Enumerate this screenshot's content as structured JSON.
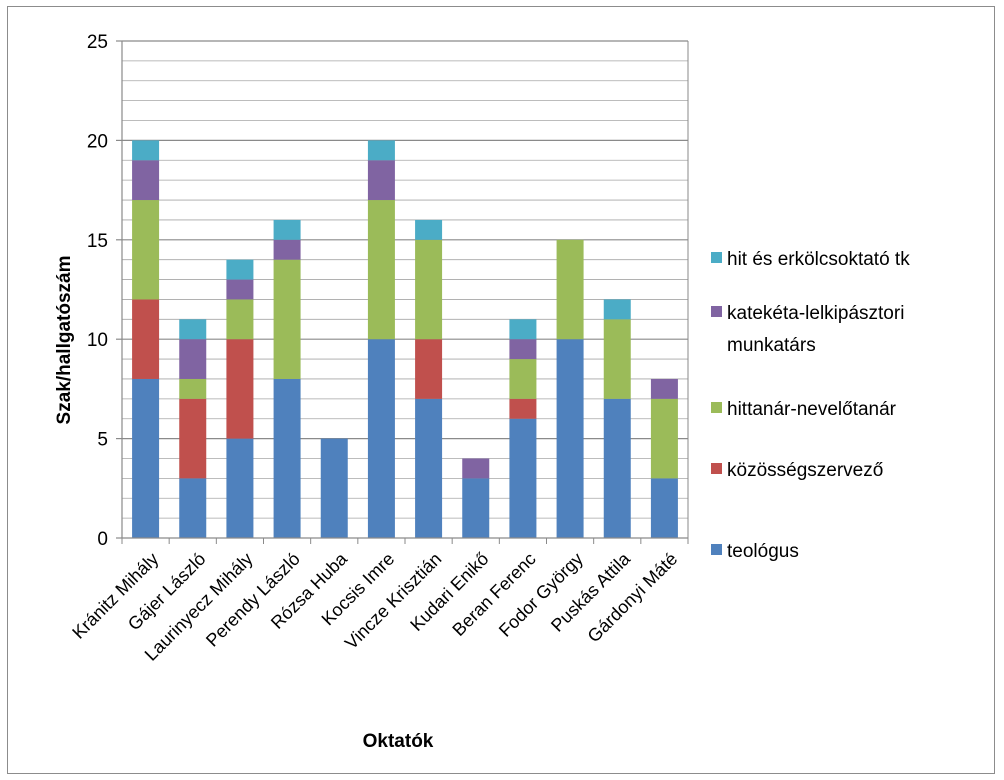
{
  "chart_data": {
    "type": "bar",
    "stacked": true,
    "categories": [
      "Kránitz Mihály",
      "Gájer László",
      "Laurinyecz Mihály",
      "Perendy László",
      "Rózsa Huba",
      "Kocsis Imre",
      "Vincze Krisztián",
      "Kudari Enikő",
      "Beran Ferenc",
      "Fodor György",
      "Puskás Attila",
      "Gárdonyi Máté"
    ],
    "series": [
      {
        "name": "teológus",
        "color": "#4F81BD",
        "values": [
          8,
          3,
          5,
          8,
          5,
          10,
          7,
          3,
          6,
          10,
          7,
          3
        ]
      },
      {
        "name": "közösségszervező",
        "color": "#C0504D",
        "values": [
          4,
          4,
          5,
          0,
          0,
          0,
          3,
          0,
          1,
          0,
          0,
          0
        ]
      },
      {
        "name": "hittanár-nevelőtanár",
        "color": "#9BBB59",
        "values": [
          5,
          1,
          2,
          6,
          0,
          7,
          5,
          0,
          2,
          5,
          4,
          4
        ]
      },
      {
        "name": "katekéta-lelkipásztori munkatárs",
        "color": "#8064A2",
        "values": [
          2,
          2,
          1,
          1,
          0,
          2,
          0,
          1,
          1,
          0,
          0,
          1
        ]
      },
      {
        "name": "hit és erkölcsoktató tk",
        "color": "#4BACC6",
        "values": [
          1,
          1,
          1,
          1,
          0,
          1,
          1,
          0,
          1,
          0,
          1,
          0
        ]
      }
    ],
    "legend_order": [
      "hit és erkölcsoktató tk",
      "katekéta-lelkipásztori munkatárs",
      "hittanár-nevelőtanár",
      "közösségszervező",
      "teológus"
    ],
    "legend_lines": {
      "hit és erkölcsoktató tk": [
        "hit és erkölcsoktató tk"
      ],
      "katekéta-lelkipásztori munkatárs": [
        "katekéta-lelkipásztori",
        "munkatárs"
      ],
      "hittanár-nevelőtanár": [
        "hittanár-nevelőtanár"
      ],
      "közösségszervező": [
        "közösségszervező"
      ],
      "teológus": [
        "teológus"
      ]
    },
    "xlabel": "Oktatók",
    "ylabel": "Szak/hallgatószám",
    "ylim": [
      0,
      25
    ],
    "yticks": [
      0,
      5,
      10,
      15,
      20,
      25
    ],
    "major_grid_step": 5,
    "minor_grid_step": 1,
    "grid": true,
    "legend_position": "right"
  }
}
